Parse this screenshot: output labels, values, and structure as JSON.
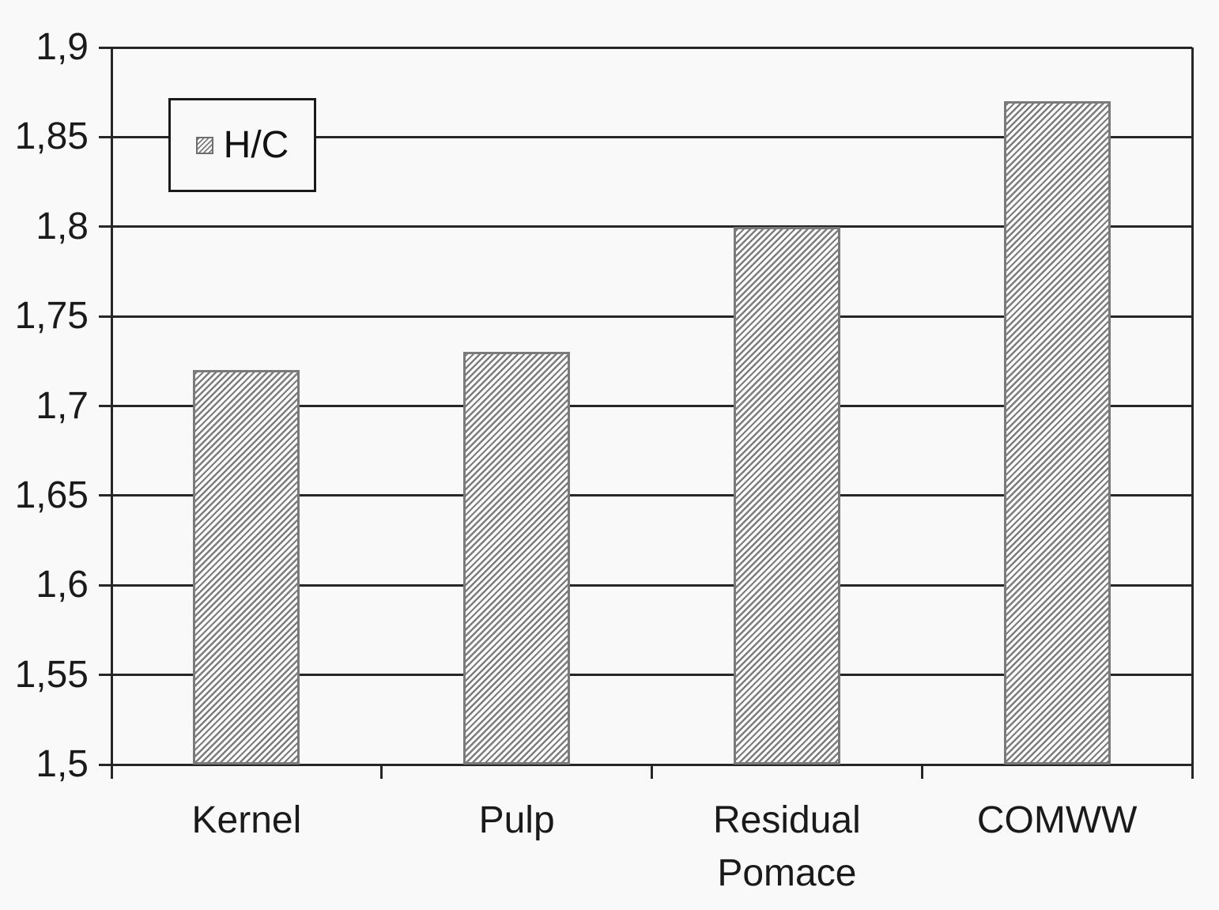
{
  "figure": {
    "background_color": "#f9f9f9",
    "text_color": "#1a1a1a"
  },
  "legend": {
    "label": "H/C",
    "swatch_icon": "diagonal-hatch-swatch",
    "position": "top-left-inside"
  },
  "chart_data": {
    "type": "bar",
    "title": "",
    "xlabel": "",
    "ylabel": "",
    "categories": [
      "Kernel",
      "Pulp",
      "Residual Pomace",
      "COMWW"
    ],
    "series": [
      {
        "name": "H/C",
        "values": [
          1.72,
          1.73,
          1.8,
          1.87
        ]
      }
    ],
    "ylim": [
      1.5,
      1.9
    ],
    "yticks": [
      1.5,
      1.55,
      1.6,
      1.65,
      1.7,
      1.75,
      1.8,
      1.85,
      1.9
    ],
    "ytick_labels": [
      "1,5",
      "1,55",
      "1,6",
      "1,65",
      "1,7",
      "1,75",
      "1,8",
      "1,85",
      "1,9"
    ],
    "decimal_separator": ",",
    "grid": "horizontal",
    "legend_position": "top-left-inside",
    "bar_style": "diagonal-hatch",
    "colors": {
      "hatch_line": "#7d7d7d",
      "bar_face": "#fdfdfd",
      "bar_border": "#7a7a7a",
      "grid_line": "#262626",
      "axis_line": "#262626",
      "background": "#f9f9f9"
    }
  }
}
